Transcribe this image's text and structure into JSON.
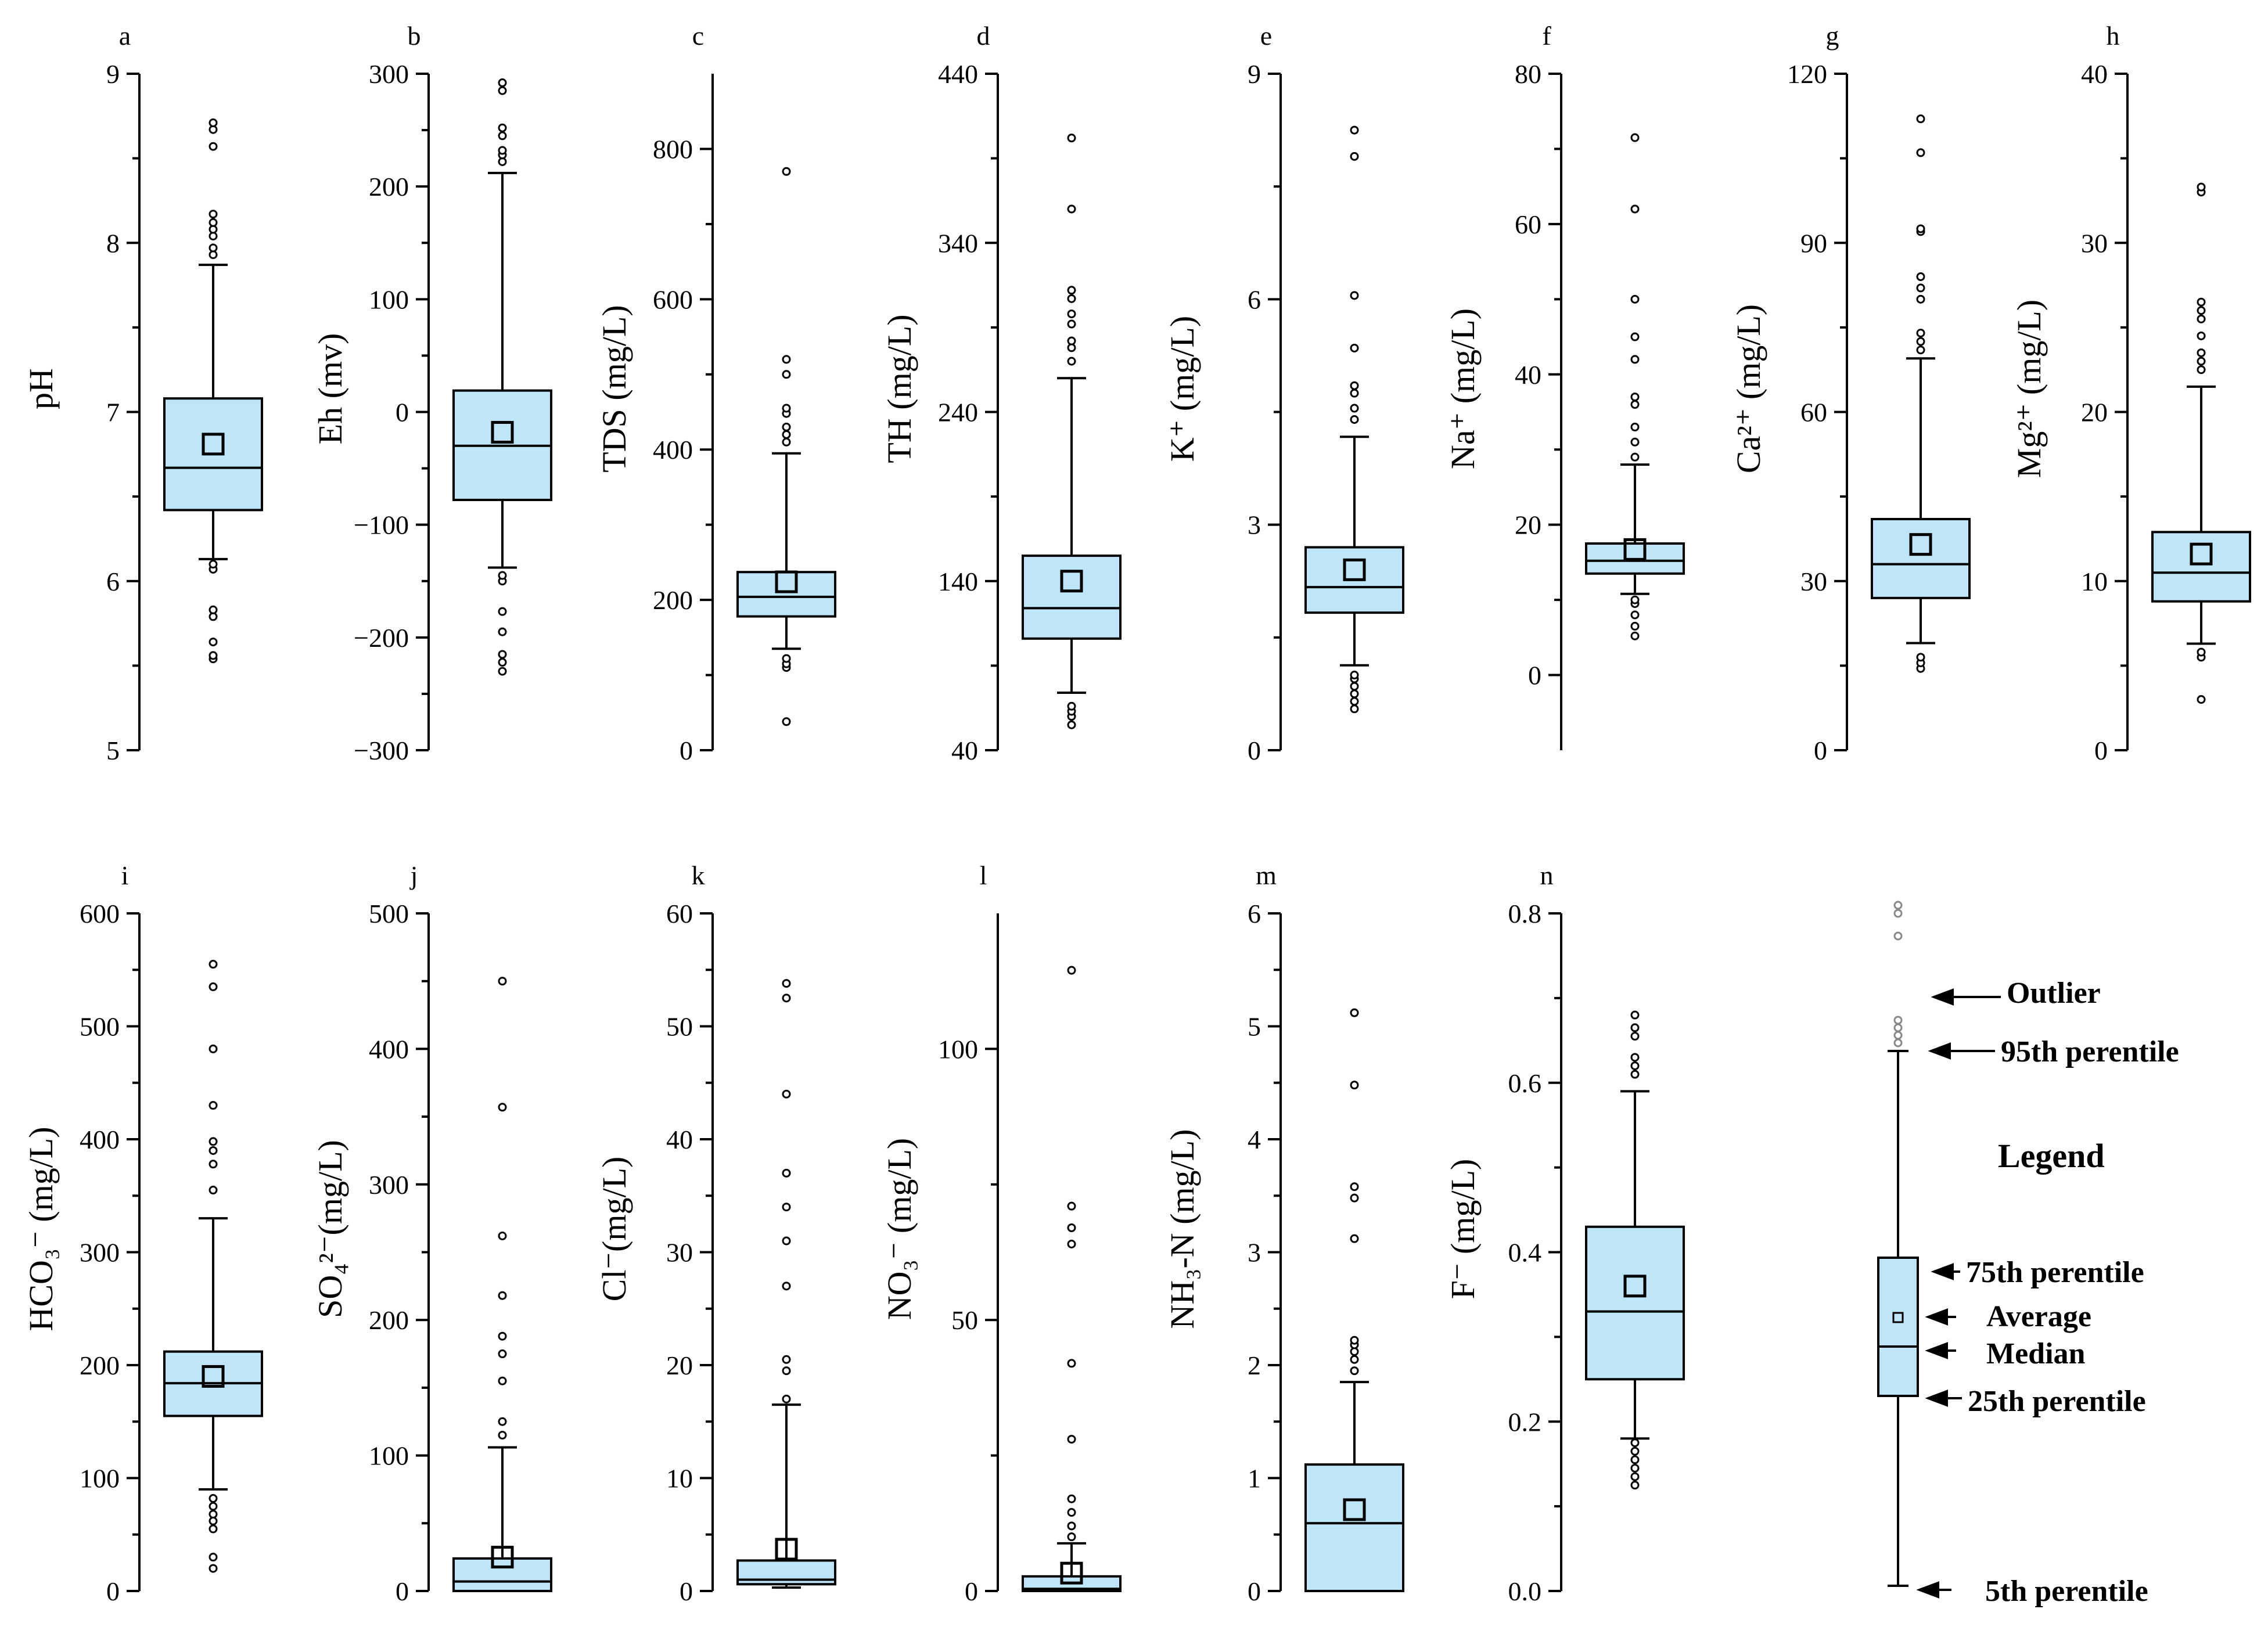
{
  "colors": {
    "box_fill": "#bfe6f8",
    "stroke": "#000000"
  },
  "chart_data": [
    {
      "type": "box",
      "panel": "a",
      "ylabel": "pH",
      "ylim": [
        5,
        9
      ],
      "ticks": [
        5,
        6,
        7,
        8,
        9
      ],
      "box": {
        "p5": 6.13,
        "q1": 6.42,
        "median": 6.67,
        "mean": 6.81,
        "q3": 7.08,
        "p95": 7.87
      },
      "outliers": [
        5.54,
        5.56,
        5.64,
        5.79,
        5.83,
        6.07,
        6.1,
        7.93,
        7.97,
        8.04,
        8.08,
        8.12,
        8.17,
        8.57,
        8.67,
        8.71
      ]
    },
    {
      "type": "box",
      "panel": "b",
      "ylabel": "Eh (mv)",
      "ylim": [
        -300,
        300
      ],
      "ticks": [
        -300,
        -200,
        -100,
        0,
        100,
        200,
        300
      ],
      "tick_labels": [
        "−300",
        "−200",
        "−100",
        "0",
        "100",
        "200",
        "300"
      ],
      "box": {
        "p5": -138,
        "q1": -78,
        "median": -30,
        "mean": -18,
        "q3": 19,
        "p95": 212
      },
      "outliers": [
        -230,
        -222,
        -215,
        -195,
        -177,
        -150,
        -145,
        222,
        228,
        232,
        245,
        252,
        285,
        292
      ]
    },
    {
      "type": "box",
      "panel": "c",
      "ylabel": "TDS (mg/L)",
      "ylim": [
        0,
        900
      ],
      "ticks": [
        0,
        200,
        400,
        600,
        800
      ],
      "box": {
        "p5": 135,
        "q1": 178,
        "median": 204,
        "mean": 224,
        "q3": 237,
        "p95": 395
      },
      "outliers": [
        38,
        110,
        115,
        122,
        410,
        420,
        430,
        448,
        455,
        500,
        520,
        770
      ]
    },
    {
      "type": "box",
      "panel": "d",
      "ylabel": "TH (mg/L)",
      "ylim": [
        40,
        440
      ],
      "ticks": [
        40,
        140,
        240,
        340,
        440
      ],
      "box": {
        "p5": 74,
        "q1": 106,
        "median": 124,
        "mean": 140,
        "q3": 155,
        "p95": 260
      },
      "outliers": [
        55,
        60,
        63,
        66,
        270,
        278,
        282,
        292,
        298,
        307,
        312,
        360,
        402
      ]
    },
    {
      "type": "box",
      "panel": "e",
      "ylabel": "K⁺ (mg/L)",
      "ylim": [
        0,
        9
      ],
      "ticks": [
        0,
        3,
        6,
        9
      ],
      "box": {
        "p5": 1.13,
        "q1": 1.83,
        "median": 2.17,
        "mean": 2.4,
        "q3": 2.7,
        "p95": 4.17
      },
      "outliers": [
        0.55,
        0.65,
        0.75,
        0.85,
        0.95,
        1.0,
        4.4,
        4.55,
        4.75,
        4.85,
        5.35,
        6.05,
        7.9,
        8.25
      ]
    },
    {
      "type": "box",
      "panel": "f",
      "ylabel": "Na⁺ (mg/L)",
      "ylim": [
        -10,
        80
      ],
      "ticks": [
        0,
        20,
        40,
        60,
        80
      ],
      "box": {
        "p5": 10.8,
        "q1": 13.5,
        "median": 15.2,
        "mean": 16.7,
        "q3": 17.5,
        "p95": 28
      },
      "outliers": [
        5.2,
        6.5,
        8,
        9.5,
        10,
        29,
        31,
        33,
        36,
        37,
        42,
        45,
        50,
        62,
        71.5
      ]
    },
    {
      "type": "box",
      "panel": "g",
      "ylabel": "Ca²⁺ (mg/L)",
      "ylim": [
        0,
        120
      ],
      "ticks": [
        0,
        30,
        60,
        90,
        120
      ],
      "box": {
        "p5": 19,
        "q1": 27,
        "median": 33,
        "mean": 36.5,
        "q3": 41,
        "p95": 69.5
      },
      "outliers": [
        14.5,
        15.5,
        16.5,
        71,
        72.5,
        74,
        80,
        82,
        84,
        92,
        92.5,
        106,
        112
      ]
    },
    {
      "type": "box",
      "panel": "h",
      "ylabel": "Mg²⁺ (mg/L)",
      "ylim": [
        0,
        40
      ],
      "ticks": [
        0,
        10,
        20,
        30,
        40
      ],
      "box": {
        "p5": 6.3,
        "q1": 8.8,
        "median": 10.5,
        "mean": 11.6,
        "q3": 12.9,
        "p95": 21.5
      },
      "outliers": [
        3,
        5.5,
        5.8,
        22.5,
        23,
        23.5,
        24.5,
        25.5,
        26,
        26.5,
        33,
        33.3
      ]
    },
    {
      "type": "box",
      "panel": "i",
      "ylabel": "HCO₃⁻ (mg/L)",
      "ylim": [
        0,
        600
      ],
      "ticks": [
        0,
        100,
        200,
        300,
        400,
        500,
        600
      ],
      "box": {
        "p5": 90,
        "q1": 155,
        "median": 184,
        "mean": 190,
        "q3": 212,
        "p95": 330
      },
      "outliers": [
        20,
        30,
        55,
        62,
        68,
        75,
        82,
        355,
        378,
        390,
        398,
        430,
        480,
        535,
        555
      ]
    },
    {
      "type": "box",
      "panel": "j",
      "ylabel": "SO₄²⁻(mg/L)",
      "ylim": [
        0,
        500
      ],
      "ticks": [
        0,
        100,
        200,
        300,
        400,
        500
      ],
      "box": {
        "p5": 0,
        "q1": 0,
        "median": 7,
        "mean": 25,
        "q3": 24,
        "p95": 106
      },
      "outliers": [
        115,
        125,
        155,
        175,
        188,
        218,
        262,
        357,
        450
      ]
    },
    {
      "type": "box",
      "panel": "k",
      "ylabel": "Cl⁻(mg/L)",
      "ylim": [
        0,
        60
      ],
      "ticks": [
        0,
        10,
        20,
        30,
        40,
        50,
        60
      ],
      "box": {
        "p5": 0.3,
        "q1": 0.6,
        "median": 1,
        "mean": 3.7,
        "q3": 2.7,
        "p95": 16.5
      },
      "outliers": [
        17,
        19.5,
        20.5,
        27,
        31,
        34,
        37,
        44,
        52.5,
        53.8
      ]
    },
    {
      "type": "box",
      "panel": "l",
      "ylabel": "NO₃⁻ (mg/L)",
      "ylim": [
        0,
        125
      ],
      "ticks": [
        0,
        50,
        100
      ],
      "box": {
        "p5": 0,
        "q1": 0,
        "median": 0.4,
        "mean": 3.3,
        "q3": 2.7,
        "p95": 8.8
      },
      "outliers": [
        10,
        12,
        14.5,
        17,
        28,
        42,
        64,
        67,
        71,
        114.5
      ]
    },
    {
      "type": "box",
      "panel": "m",
      "ylabel": "NH₃-N (mg/L)",
      "ylim": [
        0,
        6
      ],
      "ticks": [
        0,
        1,
        2,
        3,
        4,
        5,
        6
      ],
      "box": {
        "p5": 0,
        "q1": 0,
        "median": 0.6,
        "mean": 0.72,
        "q3": 1.12,
        "p95": 1.85
      },
      "outliers": [
        1.95,
        2.05,
        2.12,
        2.18,
        2.22,
        3.12,
        3.48,
        3.58,
        4.48,
        5.12
      ]
    },
    {
      "type": "box",
      "panel": "n",
      "ylabel": "F⁻ (mg/L)",
      "ylim": [
        0,
        0.8
      ],
      "ticks": [
        0,
        0.2,
        0.4,
        0.6,
        0.8
      ],
      "tick_labels": [
        "0.0",
        "0.2",
        "0.4",
        "0.6",
        "0.8"
      ],
      "box": {
        "p5": 0.18,
        "q1": 0.25,
        "median": 0.33,
        "mean": 0.36,
        "q3": 0.43,
        "p95": 0.59
      },
      "outliers": [
        0.125,
        0.135,
        0.145,
        0.155,
        0.165,
        0.175,
        0.61,
        0.62,
        0.63,
        0.655,
        0.665,
        0.68
      ]
    }
  ],
  "legend": {
    "title": "Legend",
    "labels": {
      "outlier": "Outlier",
      "p95": "95th perentile",
      "p75": "75th perentile",
      "average": "Average",
      "median": "Median",
      "p25": "25th perentile",
      "p5": "5th perentile"
    }
  }
}
